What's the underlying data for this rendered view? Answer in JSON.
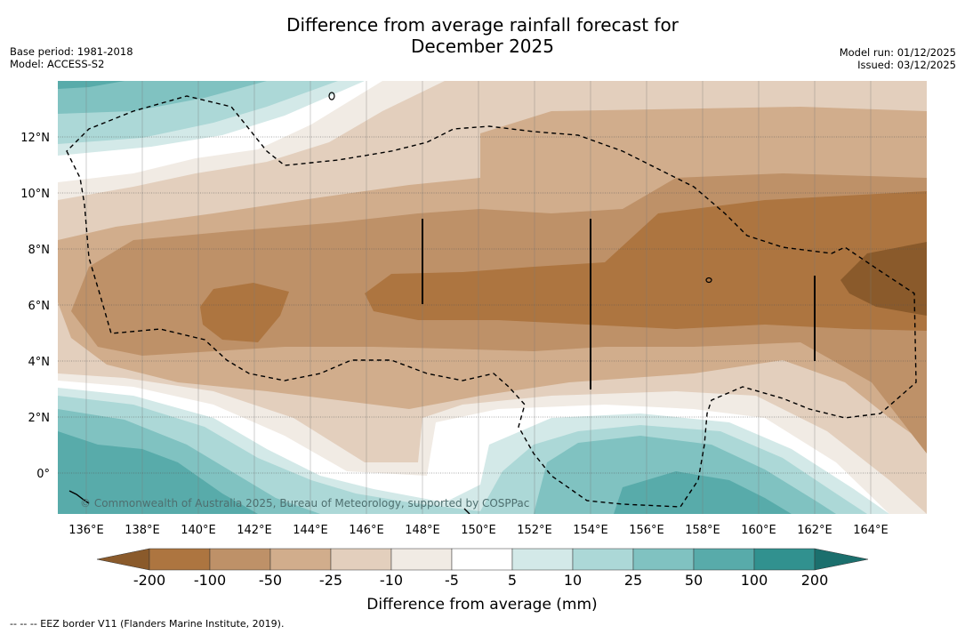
{
  "title": {
    "line1": "Difference from average rainfall forecast for",
    "line2": "December 2025"
  },
  "meta_left": {
    "base_period": "Base period: 1981-2018",
    "model": "Model: ACCESS-S2"
  },
  "meta_right": {
    "model_run": "Model run: 01/12/2025",
    "issued": "Issued: 03/12/2025"
  },
  "map": {
    "lon_range": [
      135,
      166
    ],
    "lat_range": [
      -1.5,
      14
    ],
    "x_ticks": [
      "136°E",
      "138°E",
      "140°E",
      "142°E",
      "144°E",
      "146°E",
      "148°E",
      "150°E",
      "152°E",
      "154°E",
      "156°E",
      "158°E",
      "160°E",
      "162°E",
      "164°E"
    ],
    "y_ticks": [
      "12°N",
      "10°N",
      "8°N",
      "6°N",
      "4°N",
      "2°N",
      "0°"
    ],
    "watermark": "© Commonwealth of Australia 2025, Bureau of Meteorology, supported by COSPPac"
  },
  "colorbar": {
    "labels": [
      "-200",
      "-100",
      "-50",
      "-25",
      "-10",
      "-5",
      "5",
      "10",
      "25",
      "50",
      "100",
      "200"
    ],
    "colors": [
      "#8a5a2b",
      "#ad7540",
      "#be9168",
      "#d1ad8c",
      "#e3cfbd",
      "#f1ebe4",
      "#ffffff",
      "#d3e9e8",
      "#acd8d7",
      "#80c2c1",
      "#58abaa",
      "#31918f",
      "#1b6f6d"
    ],
    "title": "Difference from average (mm)"
  },
  "chart_data": {
    "type": "heatmap",
    "title": "Difference from average rainfall forecast for December 2025",
    "units": "mm",
    "levels": [
      -200,
      -100,
      -50,
      -25,
      -10,
      -5,
      5,
      10,
      25,
      50,
      100,
      200
    ]
  },
  "footnote": "--  --  -- EEZ border V11 (Flanders Marine Institute, 2019)."
}
